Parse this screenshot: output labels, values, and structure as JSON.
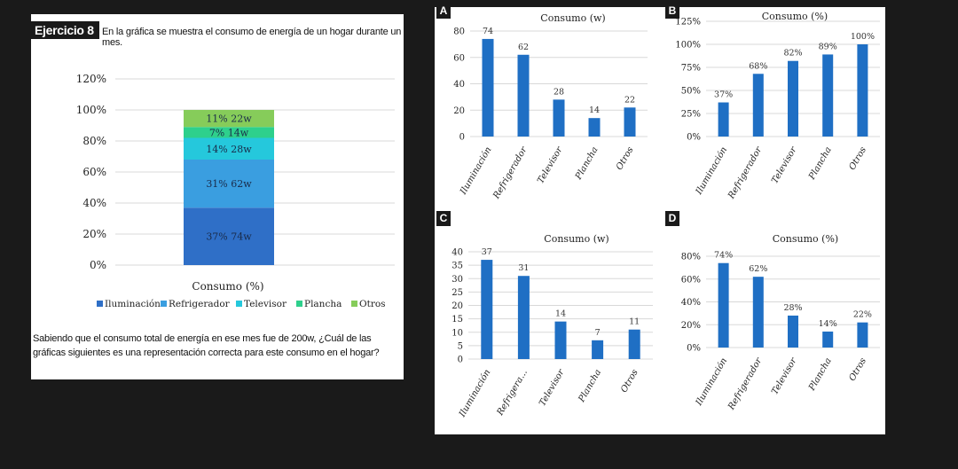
{
  "exercise": {
    "tag": "Ejercicio 8",
    "intro": "En la gráfica se muestra el consumo de energía de un hogar durante un mes.",
    "question": "Sabiendo que el consumo total de energía en ese mes fue de 200w, ¿Cuál de las gráficas siguientes es una representación correcta para este consumo en el hogar?"
  },
  "options": {
    "a": "A",
    "b": "B",
    "c": "C",
    "d": "D"
  },
  "colors": {
    "bar": "#1f6fc4",
    "grid": "#d8d8d8",
    "stack": [
      "#2f6fc7",
      "#3a9ee0",
      "#25c8dc",
      "#2ed08c",
      "#86cc5a"
    ]
  },
  "chart_data": [
    {
      "id": "main",
      "type": "bar",
      "stacked": true,
      "title": "Consumo (%)",
      "yticks": [
        "0%",
        "20%",
        "40%",
        "60%",
        "80%",
        "100%",
        "120%"
      ],
      "ylim": [
        0,
        120
      ],
      "series": [
        {
          "name": "Iluminación",
          "value": 37,
          "label": "37%  74w"
        },
        {
          "name": "Refrigerador",
          "value": 31,
          "label": "31%  62w"
        },
        {
          "name": "Televisor",
          "value": 14,
          "label": "14%  28w"
        },
        {
          "name": "Plancha",
          "value": 7,
          "label": "7%  14w"
        },
        {
          "name": "Otros",
          "value": 11,
          "label": "11%  22w"
        }
      ],
      "legend": [
        "Iluminación",
        "Refrigerador",
        "Televisor",
        "Plancha",
        "Otros"
      ],
      "legend_position": "bottom",
      "grid": true
    },
    {
      "id": "A",
      "type": "bar",
      "title": "Consumo (w)",
      "categories": [
        "Iluminación",
        "Refrigerador",
        "Televisor",
        "Plancha",
        "Otros"
      ],
      "values": [
        74,
        62,
        28,
        14,
        22
      ],
      "data_labels": [
        "74",
        "62",
        "28",
        "14",
        "22"
      ],
      "yticks": [
        "0",
        "20",
        "40",
        "60",
        "80"
      ],
      "ylim": [
        0,
        80
      ],
      "grid": true
    },
    {
      "id": "B",
      "type": "bar",
      "title": "Consumo (%)",
      "categories": [
        "Iluminación",
        "Refrigerador",
        "Televisor",
        "Plancha",
        "Otros"
      ],
      "values": [
        37,
        68,
        82,
        89,
        100
      ],
      "data_labels": [
        "37%",
        "68%",
        "82%",
        "89%",
        "100%"
      ],
      "yticks": [
        "0%",
        "25%",
        "50%",
        "75%",
        "100%",
        "125%"
      ],
      "ylim": [
        0,
        125
      ],
      "grid": true
    },
    {
      "id": "C",
      "type": "bar",
      "title": "Consumo (w)",
      "categories": [
        "Iluminación",
        "Refrigera...",
        "Televisor",
        "Plancha",
        "Otros"
      ],
      "values": [
        37,
        31,
        14,
        7,
        11
      ],
      "data_labels": [
        "37",
        "31",
        "14",
        "7",
        "11"
      ],
      "yticks": [
        "0",
        "5",
        "10",
        "15",
        "20",
        "25",
        "30",
        "35",
        "40"
      ],
      "ylim": [
        0,
        40
      ],
      "grid": true
    },
    {
      "id": "D",
      "type": "bar",
      "title": "Consumo (%)",
      "categories": [
        "Iluminación",
        "Refrigerador",
        "Televisor",
        "Plancha",
        "Otros"
      ],
      "values": [
        74,
        62,
        28,
        14,
        22
      ],
      "data_labels": [
        "74%",
        "62%",
        "28%",
        "14%",
        "22%"
      ],
      "yticks": [
        "0%",
        "20%",
        "40%",
        "60%",
        "80%"
      ],
      "ylim": [
        0,
        80
      ],
      "grid": true
    }
  ]
}
